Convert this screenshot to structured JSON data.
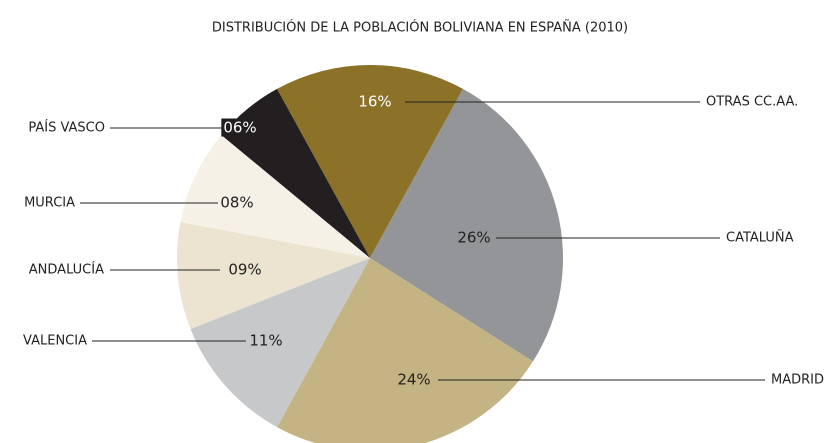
{
  "chart_data": {
    "type": "pie",
    "title": "DISTRIBUCIÓN DE LA POBLACIÓN BOLIVIANA EN ESPAÑA (2010)",
    "categories": [
      "OTRAS CC.AA.",
      "CATALUÑA",
      "MADRID",
      "VALENCIA",
      "ANDALUCÍA",
      "MURCIA",
      "PAÍS VASCO"
    ],
    "values": [
      16,
      26,
      24,
      11,
      9,
      8,
      6
    ],
    "value_labels": [
      "16%",
      "26%",
      "24%",
      "11%",
      "09%",
      "08%",
      "06%"
    ],
    "colors": [
      "#8b7228",
      "#939598",
      "#c4b483",
      "#c7c8ca",
      "#ece4d1",
      "#f5f1e7",
      "#231f20"
    ]
  }
}
